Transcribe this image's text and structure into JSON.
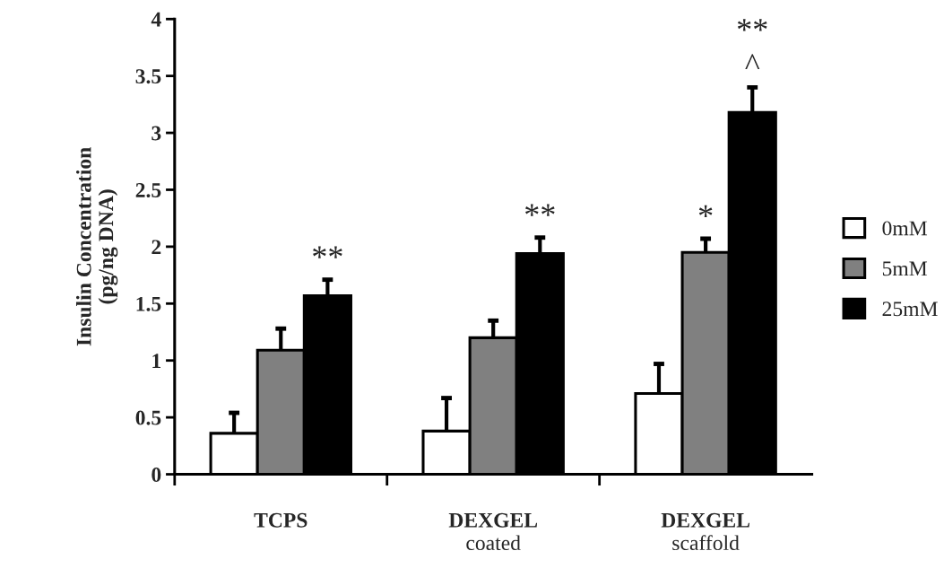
{
  "chart_data": {
    "type": "bar",
    "ylabel": "Insulin Concentration\n(pg/ng DNA)",
    "categories": [
      "TCPS",
      "DEXGEL\ncoated",
      "DEXGEL\nscaffold"
    ],
    "series": [
      {
        "name": "0mM",
        "color": "#ffffff",
        "values": [
          0.36,
          0.38,
          0.71
        ],
        "errors": [
          [
            0.36,
            0.54
          ],
          [
            0.38,
            0.67
          ],
          [
            0.71,
            0.97
          ]
        ]
      },
      {
        "name": "5mM",
        "color": "#808080",
        "values": [
          1.09,
          1.2,
          1.95
        ],
        "errors": [
          [
            1.09,
            1.28
          ],
          [
            1.2,
            1.35
          ],
          [
            1.95,
            2.07
          ]
        ]
      },
      {
        "name": "25mM",
        "color": "#000000",
        "values": [
          1.57,
          1.94,
          3.18
        ],
        "errors": [
          [
            1.57,
            1.71
          ],
          [
            1.94,
            2.08
          ],
          [
            3.18,
            3.4
          ]
        ]
      }
    ],
    "annotations": [
      "**",
      "**",
      "*",
      "^",
      "**"
    ],
    "ylim": [
      0,
      4
    ],
    "yticks": [
      0,
      0.5,
      1,
      1.5,
      2,
      2.5,
      3,
      3.5,
      4
    ],
    "grid": false,
    "legend": "right"
  }
}
